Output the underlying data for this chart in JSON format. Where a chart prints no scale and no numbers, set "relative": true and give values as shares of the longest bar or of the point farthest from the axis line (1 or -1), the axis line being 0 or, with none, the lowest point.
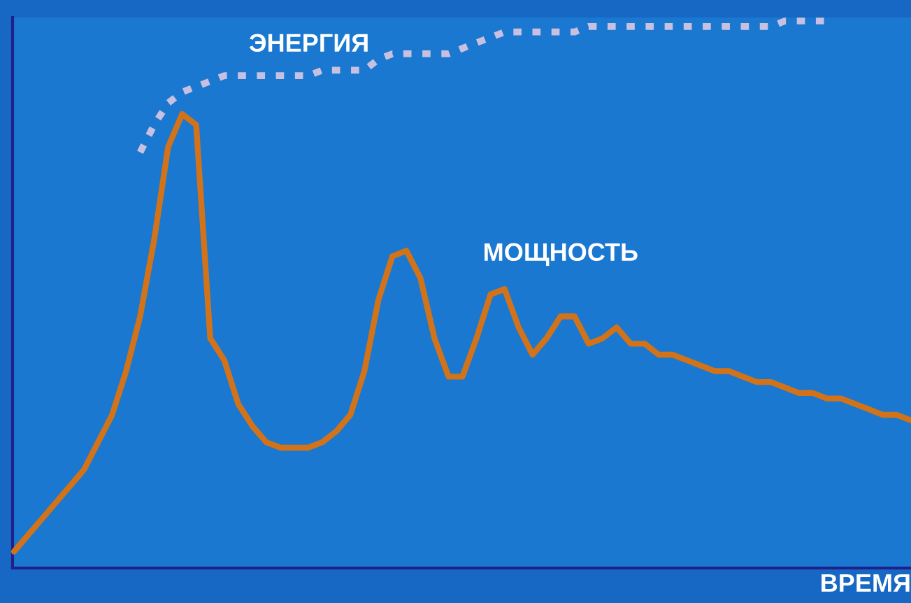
{
  "chart_data": {
    "type": "line",
    "relative": true,
    "xlabel": "ВРЕМЯ",
    "grid": false,
    "legend": false,
    "categories": [
      null,
      null,
      null,
      null,
      null,
      null,
      null,
      null,
      null,
      null,
      null,
      null,
      null,
      null,
      null,
      null,
      null,
      null,
      null,
      null,
      null,
      null,
      null,
      null,
      null,
      null,
      null,
      null,
      null,
      null,
      null,
      null,
      null,
      null,
      null,
      null,
      null,
      null,
      null,
      null,
      null,
      null,
      null,
      null,
      null,
      null,
      null,
      null,
      null,
      null,
      null,
      null,
      null,
      null,
      null,
      null,
      null,
      null,
      null,
      null,
      null,
      null,
      null,
      null,
      null
    ],
    "series": [
      {
        "name": "ЭНЕРГИЯ",
        "color": "#c8c0e0",
        "line_style": "dashed",
        "values": [
          null,
          null,
          null,
          null,
          null,
          null,
          null,
          null,
          null,
          0.76,
          0.81,
          0.85,
          0.87,
          0.88,
          0.89,
          0.9,
          0.9,
          0.9,
          0.9,
          0.9,
          0.9,
          0.9,
          0.91,
          0.91,
          0.91,
          0.91,
          0.93,
          0.94,
          0.94,
          0.94,
          0.94,
          0.94,
          0.95,
          0.96,
          0.97,
          0.98,
          0.98,
          0.98,
          0.98,
          0.98,
          0.98,
          0.99,
          0.99,
          0.99,
          0.99,
          0.99,
          0.99,
          0.99,
          0.99,
          0.99,
          0.99,
          0.99,
          0.99,
          0.99,
          0.99,
          1.0,
          1.0,
          1.0,
          1.0,
          null,
          null,
          null,
          null,
          null,
          null
        ]
      },
      {
        "name": "МОЩНОСТЬ",
        "color": "#d2731a",
        "line_style": "solid",
        "values": [
          0.03,
          0.06,
          0.09,
          0.12,
          0.15,
          0.18,
          0.23,
          0.28,
          0.36,
          0.46,
          0.6,
          0.77,
          0.83,
          0.81,
          0.42,
          0.38,
          0.3,
          0.26,
          0.23,
          0.22,
          0.22,
          0.22,
          0.23,
          0.25,
          0.28,
          0.36,
          0.49,
          0.57,
          0.58,
          0.53,
          0.42,
          0.35,
          0.35,
          0.42,
          0.5,
          0.51,
          0.44,
          0.39,
          0.42,
          0.46,
          0.46,
          0.41,
          0.42,
          0.44,
          0.41,
          0.41,
          0.39,
          0.39,
          0.38,
          0.37,
          0.36,
          0.36,
          0.35,
          0.34,
          0.34,
          0.33,
          0.32,
          0.32,
          0.31,
          0.31,
          0.3,
          0.29,
          0.28,
          0.28,
          0.27
        ]
      }
    ]
  }
}
